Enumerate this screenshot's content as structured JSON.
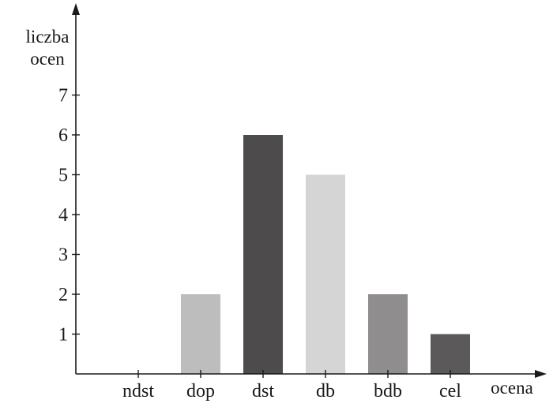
{
  "chart_data": {
    "type": "bar",
    "categories": [
      "ndst",
      "dop",
      "dst",
      "db",
      "bdb",
      "cel"
    ],
    "values": [
      0,
      2,
      6,
      5,
      2,
      1
    ],
    "bar_colors": [
      "#bdbdbd",
      "#bdbdbd",
      "#4d4b4c",
      "#d5d5d5",
      "#8f8d8e",
      "#5b595a"
    ],
    "title": "",
    "xlabel": "ocena",
    "ylabel_lines": [
      "liczba",
      "ocen"
    ],
    "ylim": [
      0,
      7
    ],
    "yticks": [
      1,
      2,
      3,
      4,
      5,
      6,
      7
    ],
    "grid": false,
    "legend": "none"
  }
}
